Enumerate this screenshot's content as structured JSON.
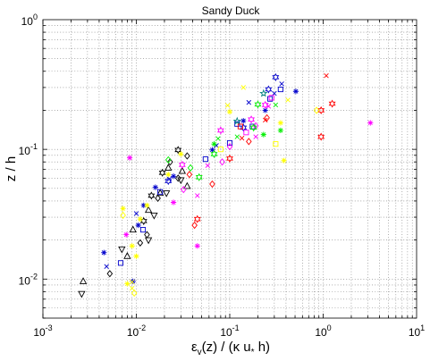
{
  "chart_data": {
    "type": "scatter",
    "title": "Sandy Duck",
    "xlabel": "εv(z) / (κ u* h)",
    "ylabel": "z / h",
    "xscale": "log",
    "yscale": "log",
    "xlim": [
      0.001,
      10
    ],
    "ylim": [
      0.005,
      1
    ],
    "grid": true,
    "legend": "none",
    "x_ticks": [
      {
        "value": 0.001,
        "base": "10",
        "exp": "-3"
      },
      {
        "value": 0.01,
        "base": "10",
        "exp": "-2"
      },
      {
        "value": 0.1,
        "base": "10",
        "exp": "-1"
      },
      {
        "value": 1,
        "base": "10",
        "exp": "0"
      },
      {
        "value": 10,
        "base": "10",
        "exp": "1"
      }
    ],
    "y_ticks": [
      {
        "value": 0.01,
        "base": "10",
        "exp": "-2"
      },
      {
        "value": 0.1,
        "base": "10",
        "exp": "-1"
      },
      {
        "value": 1,
        "base": "10",
        "exp": "0"
      }
    ],
    "series": [
      {
        "marker": "triangle-up",
        "color": "#000000",
        "points": [
          [
            0.0027,
            0.0096
          ],
          [
            0.008,
            0.015
          ],
          [
            0.0092,
            0.024
          ],
          [
            0.0135,
            0.034
          ],
          [
            0.018,
            0.046
          ],
          [
            0.022,
            0.072
          ],
          [
            0.031,
            0.068
          ],
          [
            0.035,
            0.052
          ]
        ]
      },
      {
        "marker": "triangle-down",
        "color": "#000000",
        "points": [
          [
            0.0026,
            0.0077
          ],
          [
            0.007,
            0.017
          ],
          [
            0.0135,
            0.02
          ],
          [
            0.0155,
            0.031
          ],
          [
            0.03,
            0.058
          ],
          [
            0.021,
            0.046
          ]
        ]
      },
      {
        "marker": "diamond",
        "color": "#000000",
        "points": [
          [
            0.0052,
            0.011
          ],
          [
            0.011,
            0.019
          ],
          [
            0.013,
            0.022
          ],
          [
            0.017,
            0.042
          ],
          [
            0.023,
            0.08
          ],
          [
            0.028,
            0.06
          ],
          [
            0.035,
            0.089
          ]
        ]
      },
      {
        "marker": "star6",
        "color": "#000000",
        "points": [
          [
            0.012,
            0.028
          ],
          [
            0.0145,
            0.044
          ],
          [
            0.019,
            0.066
          ],
          [
            0.028,
            0.099
          ]
        ]
      },
      {
        "marker": "asterisk",
        "color": "#0000cc",
        "points": [
          [
            0.0045,
            0.016
          ],
          [
            0.0092,
            0.0096
          ],
          [
            0.0105,
            0.026
          ],
          [
            0.012,
            0.037
          ],
          [
            0.016,
            0.051
          ],
          [
            0.025,
            0.062
          ],
          [
            0.065,
            0.099
          ],
          [
            0.14,
            0.166
          ],
          [
            0.24,
            0.2
          ],
          [
            0.51,
            0.28
          ]
        ]
      },
      {
        "marker": "x",
        "color": "#0000cc",
        "points": [
          [
            0.0048,
            0.0125
          ],
          [
            0.01,
            0.032
          ],
          [
            0.0225,
            0.059
          ],
          [
            0.072,
            0.107
          ],
          [
            0.16,
            0.23
          ],
          [
            0.3,
            0.27
          ],
          [
            0.36,
            0.32
          ]
        ]
      },
      {
        "marker": "square",
        "color": "#0000cc",
        "points": [
          [
            0.0068,
            0.0133
          ],
          [
            0.0118,
            0.024
          ],
          [
            0.018,
            0.047
          ],
          [
            0.055,
            0.084
          ],
          [
            0.1,
            0.112
          ],
          [
            0.12,
            0.157
          ],
          [
            0.175,
            0.15
          ],
          [
            0.27,
            0.245
          ],
          [
            0.35,
            0.29
          ]
        ]
      },
      {
        "marker": "star6",
        "color": "#0000cc",
        "points": [
          [
            0.022,
            0.057
          ],
          [
            0.14,
            0.147
          ],
          [
            0.26,
            0.29
          ],
          [
            0.31,
            0.36
          ]
        ]
      },
      {
        "marker": "pentagram",
        "color": "#008080",
        "points": [
          [
            0.12,
            0.165
          ],
          [
            0.23,
            0.27
          ]
        ]
      },
      {
        "marker": "star6",
        "color": "#ff00ff",
        "points": [
          [
            0.031,
            0.076
          ],
          [
            0.08,
            0.14
          ],
          [
            0.17,
            0.17
          ],
          [
            0.24,
            0.22
          ]
        ]
      },
      {
        "marker": "asterisk",
        "color": "#ff00ff",
        "points": [
          [
            0.0078,
            0.022
          ],
          [
            0.025,
            0.039
          ],
          [
            0.045,
            0.018
          ],
          [
            0.0085,
            0.086
          ],
          [
            3.2,
            0.16
          ]
        ]
      },
      {
        "marker": "diamond",
        "color": "#ff00ff",
        "points": [
          [
            0.032,
            0.049
          ],
          [
            0.083,
            0.08
          ],
          [
            0.1,
            0.105
          ],
          [
            0.19,
            0.152
          ]
        ]
      },
      {
        "marker": "x",
        "color": "#ff00ff",
        "points": [
          [
            0.045,
            0.044
          ],
          [
            0.058,
            0.075
          ],
          [
            0.19,
            0.125
          ],
          [
            0.26,
            0.215
          ]
        ]
      },
      {
        "marker": "square",
        "color": "#ff00ff",
        "points": [
          [
            0.15,
            0.135
          ],
          [
            0.28,
            0.25
          ]
        ]
      },
      {
        "marker": "diamond",
        "color": "#ff0000",
        "points": [
          [
            0.037,
            0.064
          ],
          [
            0.042,
            0.026
          ],
          [
            0.065,
            0.054
          ],
          [
            0.16,
            0.115
          ],
          [
            0.25,
            0.175
          ]
        ]
      },
      {
        "marker": "star6",
        "color": "#ff0000",
        "points": [
          [
            0.045,
            0.029
          ],
          [
            0.1,
            0.085
          ],
          [
            1.25,
            0.225
          ],
          [
            0.95,
            0.2
          ]
        ]
      },
      {
        "marker": "x",
        "color": "#ff0000",
        "points": [
          [
            0.135,
            0.122
          ],
          [
            0.24,
            0.168
          ],
          [
            1.08,
            0.37
          ]
        ]
      },
      {
        "marker": "square",
        "color": "#ff0000",
        "points": [
          [
            0.13,
            0.15
          ]
        ]
      },
      {
        "marker": "hexagram",
        "color": "#ff0000",
        "points": [
          [
            0.95,
            0.125
          ]
        ]
      },
      {
        "marker": "diamond",
        "color": "#00ee00",
        "points": [
          [
            0.022,
            0.083
          ],
          [
            0.038,
            0.072
          ]
        ]
      },
      {
        "marker": "star6",
        "color": "#00ee00",
        "points": [
          [
            0.047,
            0.061
          ],
          [
            0.068,
            0.092
          ],
          [
            0.18,
            0.147
          ],
          [
            0.2,
            0.222
          ]
        ]
      },
      {
        "marker": "x",
        "color": "#00ee00",
        "points": [
          [
            0.075,
            0.121
          ],
          [
            0.12,
            0.125
          ],
          [
            0.31,
            0.22
          ]
        ]
      },
      {
        "marker": "asterisk",
        "color": "#00ee00",
        "points": [
          [
            0.068,
            0.11
          ],
          [
            0.23,
            0.13
          ],
          [
            0.35,
            0.14
          ]
        ]
      },
      {
        "marker": "asterisk",
        "color": "#ffff00",
        "points": [
          [
            0.0072,
            0.035
          ],
          [
            0.008,
            0.0092
          ],
          [
            0.009,
            0.018
          ],
          [
            0.01,
            0.015
          ],
          [
            0.011,
            0.029
          ],
          [
            0.013,
            0.037
          ],
          [
            0.022,
            0.064
          ],
          [
            0.03,
            0.092
          ],
          [
            0.1,
            0.195
          ],
          [
            0.35,
            0.16
          ],
          [
            0.38,
            0.082
          ]
        ]
      },
      {
        "marker": "x",
        "color": "#ffff00",
        "points": [
          [
            0.009,
            0.0095
          ],
          [
            0.009,
            0.0085
          ],
          [
            0.095,
            0.218
          ],
          [
            0.14,
            0.3
          ],
          [
            0.42,
            0.24
          ]
        ]
      },
      {
        "marker": "square",
        "color": "#ffff00",
        "points": [
          [
            0.08,
            0.1
          ],
          [
            0.31,
            0.11
          ]
        ]
      },
      {
        "marker": "diamond",
        "color": "#ffff00",
        "points": [
          [
            0.0072,
            0.031
          ],
          [
            0.0095,
            0.0078
          ],
          [
            0.85,
            0.2
          ]
        ]
      }
    ]
  }
}
